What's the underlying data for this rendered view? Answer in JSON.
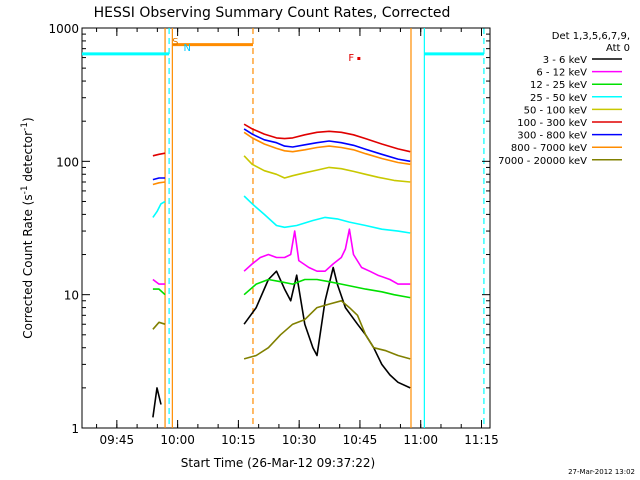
{
  "chart_data": {
    "type": "line",
    "title": "HESSI Observing Summary Count Rates, Corrected",
    "xlabel": "Start Time (26-Mar-12 09:37:22)",
    "ylabel_main": "Corrected Count Rate (s",
    "ylabel_exp1": "-1",
    "ylabel_mid": " detector",
    "ylabel_exp2": "-1",
    "ylabel_end": ")",
    "x_unit": "minutes after 09:37:22 UT",
    "xlim": [
      0,
      100.7
    ],
    "ylim": [
      1,
      1000
    ],
    "y_scale": "log",
    "x_ticks": [
      {
        "x": 8.6,
        "label": "09:45"
      },
      {
        "x": 23.6,
        "label": "10:00"
      },
      {
        "x": 38.6,
        "label": "10:15"
      },
      {
        "x": 53.6,
        "label": "10:30"
      },
      {
        "x": 68.6,
        "label": "10:45"
      },
      {
        "x": 83.6,
        "label": "11:00"
      },
      {
        "x": 98.6,
        "label": "11:15"
      }
    ],
    "y_tick_labels": [
      {
        "y": 1,
        "label": "1"
      },
      {
        "y": 10,
        "label": "10"
      },
      {
        "y": 100,
        "label": "100"
      },
      {
        "y": 1000,
        "label": "1000"
      }
    ],
    "legend_header": [
      "Det 1,3,5,6,7,9,",
      "Att 0"
    ],
    "legend_position": "right",
    "footer_timestamp": "27-Mar-2012 13:02",
    "flags": [
      {
        "letter": "S",
        "x": 21.5,
        "color": "#e07800"
      },
      {
        "letter": "N",
        "x": 24.3,
        "color": "#00c8ff"
      },
      {
        "letter": "F",
        "x": 65.0,
        "color": "#e00000"
      }
    ],
    "series": [
      {
        "name": "3 - 6 keV",
        "color": "#000000",
        "segments": [
          {
            "points": [
              [
                17.5,
                1.2
              ],
              [
                18.5,
                2.0
              ],
              [
                19.5,
                1.5
              ]
            ]
          },
          {
            "points": [
              [
                40,
                6
              ],
              [
                43,
                8
              ],
              [
                46,
                13
              ],
              [
                48,
                15
              ],
              [
                50,
                11
              ],
              [
                51.5,
                9
              ],
              [
                53,
                14
              ],
              [
                55,
                6
              ],
              [
                57,
                4
              ],
              [
                58,
                3.5
              ],
              [
                60,
                9
              ],
              [
                62,
                16
              ],
              [
                63,
                12
              ],
              [
                65,
                8
              ],
              [
                68,
                6
              ],
              [
                70,
                5
              ],
              [
                72,
                4
              ],
              [
                74,
                3
              ],
              [
                76,
                2.5
              ],
              [
                78,
                2.2
              ],
              [
                81,
                2.0
              ]
            ]
          }
        ]
      },
      {
        "name": "6 - 12 keV",
        "color": "#ff00ff",
        "segments": [
          {
            "points": [
              [
                17.5,
                13
              ],
              [
                19,
                12
              ],
              [
                20.5,
                12
              ]
            ]
          },
          {
            "points": [
              [
                40,
                15
              ],
              [
                42,
                17
              ],
              [
                44,
                19
              ],
              [
                46,
                20
              ],
              [
                48,
                19
              ],
              [
                50,
                19
              ],
              [
                51.5,
                20
              ],
              [
                52.5,
                30
              ],
              [
                53.5,
                18
              ],
              [
                56,
                16
              ],
              [
                58,
                15
              ],
              [
                60,
                15
              ],
              [
                62,
                17
              ],
              [
                64,
                19
              ],
              [
                65,
                22
              ],
              [
                66,
                31
              ],
              [
                67,
                20
              ],
              [
                69,
                16
              ],
              [
                71,
                15
              ],
              [
                73,
                14
              ],
              [
                76,
                13
              ],
              [
                78,
                12
              ],
              [
                81,
                12
              ]
            ]
          }
        ]
      },
      {
        "name": "12 - 25 keV",
        "color": "#00e000",
        "segments": [
          {
            "points": [
              [
                17.5,
                11
              ],
              [
                19,
                11
              ],
              [
                20.5,
                10
              ]
            ]
          },
          {
            "points": [
              [
                40,
                10
              ],
              [
                43,
                12
              ],
              [
                46,
                13
              ],
              [
                49,
                12.5
              ],
              [
                52,
                12
              ],
              [
                55,
                13
              ],
              [
                58,
                13
              ],
              [
                61,
                12.5
              ],
              [
                64,
                12
              ],
              [
                67,
                11.5
              ],
              [
                70,
                11
              ],
              [
                74,
                10.5
              ],
              [
                77,
                10
              ],
              [
                81,
                9.5
              ]
            ]
          }
        ]
      },
      {
        "name": "25 - 50 keV",
        "color": "#00ffff",
        "segments": [
          {
            "points": [
              [
                17.5,
                38
              ],
              [
                18.5,
                42
              ],
              [
                19.5,
                48
              ],
              [
                20.5,
                50
              ]
            ]
          },
          {
            "points": [
              [
                40,
                55
              ],
              [
                42,
                48
              ],
              [
                45,
                40
              ],
              [
                48,
                33
              ],
              [
                50,
                32
              ],
              [
                53,
                33
              ],
              [
                57,
                36
              ],
              [
                60,
                38
              ],
              [
                63,
                37
              ],
              [
                66,
                35
              ],
              [
                70,
                33
              ],
              [
                74,
                31
              ],
              [
                78,
                30
              ],
              [
                81,
                29
              ]
            ]
          }
        ]
      },
      {
        "name": "50 - 100 keV",
        "color": "#c8c800",
        "segments": [
          {
            "points": [
              [
                40,
                110
              ],
              [
                42,
                95
              ],
              [
                45,
                85
              ],
              [
                48,
                80
              ],
              [
                50,
                75
              ],
              [
                52,
                78
              ],
              [
                55,
                82
              ],
              [
                58,
                86
              ],
              [
                61,
                90
              ],
              [
                64,
                88
              ],
              [
                67,
                84
              ],
              [
                70,
                80
              ],
              [
                73,
                76
              ],
              [
                77,
                72
              ],
              [
                81,
                70
              ]
            ]
          }
        ]
      },
      {
        "name": "100 - 300 keV",
        "color": "#e00000",
        "segments": [
          {
            "points": [
              [
                17.5,
                110
              ],
              [
                19,
                113
              ],
              [
                20.5,
                115
              ]
            ]
          },
          {
            "points": [
              [
                40,
                190
              ],
              [
                42,
                175
              ],
              [
                45,
                160
              ],
              [
                48,
                150
              ],
              [
                50,
                148
              ],
              [
                52,
                150
              ],
              [
                55,
                158
              ],
              [
                58,
                165
              ],
              [
                61,
                168
              ],
              [
                64,
                165
              ],
              [
                67,
                158
              ],
              [
                70,
                148
              ],
              [
                74,
                135
              ],
              [
                78,
                124
              ],
              [
                81,
                118
              ]
            ]
          }
        ]
      },
      {
        "name": "300 - 800 keV",
        "color": "#0000ff",
        "segments": [
          {
            "points": [
              [
                17.5,
                73
              ],
              [
                19,
                75
              ],
              [
                20.5,
                75
              ]
            ]
          },
          {
            "points": [
              [
                40,
                175
              ],
              [
                42,
                160
              ],
              [
                45,
                145
              ],
              [
                48,
                138
              ],
              [
                50,
                130
              ],
              [
                52,
                128
              ],
              [
                55,
                133
              ],
              [
                58,
                138
              ],
              [
                61,
                142
              ],
              [
                64,
                138
              ],
              [
                67,
                132
              ],
              [
                70,
                123
              ],
              [
                74,
                113
              ],
              [
                78,
                104
              ],
              [
                81,
                100
              ]
            ]
          }
        ]
      },
      {
        "name": "800 - 7000 keV",
        "color": "#ff8c00",
        "segments": [
          {
            "points": [
              [
                17.5,
                67
              ],
              [
                19,
                69
              ],
              [
                20.5,
                70
              ]
            ]
          },
          {
            "points": [
              [
                40,
                165
              ],
              [
                42,
                150
              ],
              [
                45,
                135
              ],
              [
                48,
                125
              ],
              [
                50,
                120
              ],
              [
                52,
                118
              ],
              [
                55,
                122
              ],
              [
                58,
                127
              ],
              [
                61,
                130
              ],
              [
                64,
                127
              ],
              [
                67,
                122
              ],
              [
                70,
                114
              ],
              [
                74,
                105
              ],
              [
                78,
                98
              ],
              [
                81,
                95
              ]
            ]
          }
        ]
      },
      {
        "name": "7000 - 20000 keV",
        "color": "#808000",
        "segments": [
          {
            "points": [
              [
                17.5,
                5.5
              ],
              [
                19,
                6.2
              ],
              [
                20.5,
                6
              ]
            ]
          },
          {
            "points": [
              [
                40,
                3.3
              ],
              [
                43,
                3.5
              ],
              [
                46,
                4
              ],
              [
                49,
                5
              ],
              [
                52,
                6
              ],
              [
                55,
                6.5
              ],
              [
                58,
                8
              ],
              [
                61,
                8.5
              ],
              [
                64,
                9
              ],
              [
                66,
                8
              ],
              [
                68,
                7
              ],
              [
                70,
                5
              ],
              [
                72,
                4
              ],
              [
                75,
                3.8
              ],
              [
                78,
                3.5
              ],
              [
                81,
                3.3
              ]
            ]
          }
        ]
      }
    ],
    "attenuator_lines": [
      {
        "x": [
          0,
          21.5
        ],
        "y": 640,
        "color": "#00ffff"
      },
      {
        "x": [
          22.3,
          42.2
        ],
        "y": 750,
        "color": "#ff8c00"
      },
      {
        "x": [
          84.5,
          99.2
        ],
        "y": 640,
        "color": "#00ffff"
      }
    ],
    "state_lines": [
      {
        "x": 20.5,
        "color": "#ff8c00",
        "style": "solid"
      },
      {
        "x": 21.5,
        "color": "#00ffff",
        "style": "dashed"
      },
      {
        "x": 22.3,
        "color": "#ff8c00",
        "style": "solid"
      },
      {
        "x": 42.2,
        "color": "#ff8c00",
        "style": "dashed"
      },
      {
        "x": 81.2,
        "color": "#ff8c00",
        "style": "solid"
      },
      {
        "x": 84.5,
        "color": "#00ffff",
        "style": "solid"
      },
      {
        "x": 99.2,
        "color": "#00ffff",
        "style": "dashed"
      }
    ]
  }
}
